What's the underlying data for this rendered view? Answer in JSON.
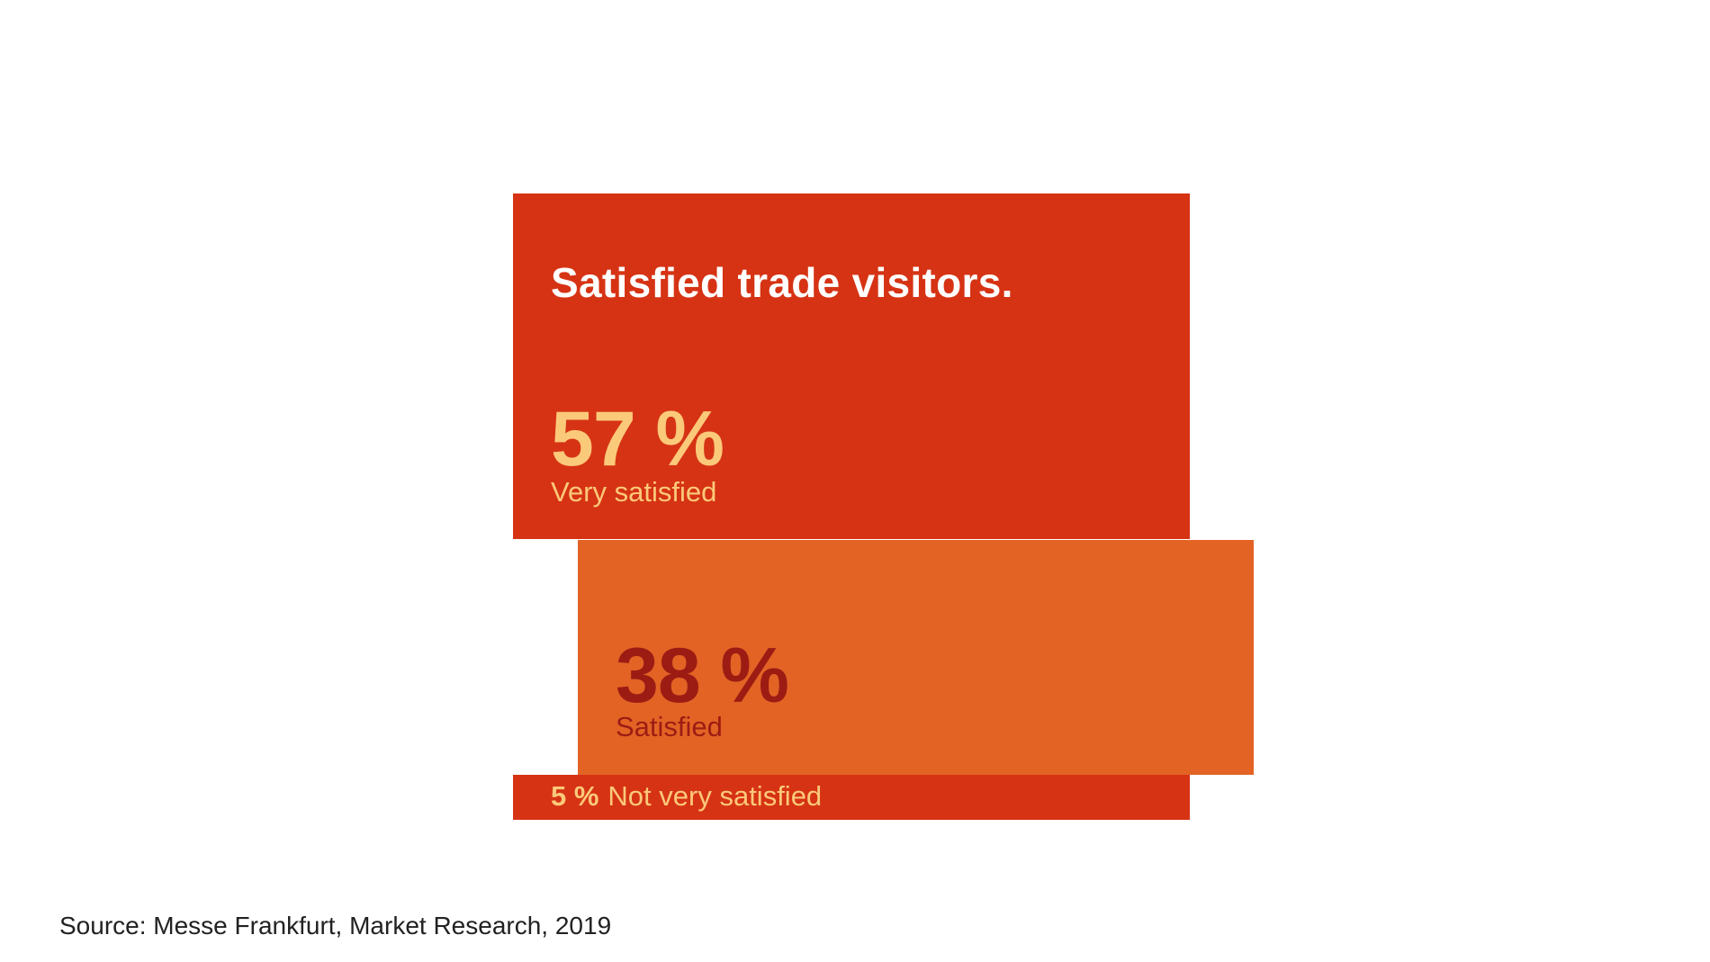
{
  "chart_data": {
    "type": "bar",
    "title": "Satisfied trade visitors.",
    "categories": [
      "Very satisfied",
      "Satisfied",
      "Not very satisfied"
    ],
    "values": [
      57,
      38,
      5
    ],
    "value_labels": [
      "57 %",
      "38 %",
      "5 %"
    ],
    "unit": "%",
    "colors": [
      "#d63314",
      "#e36325",
      "#d63314"
    ],
    "value_colors": [
      "#fbc97a",
      "#9c1c14",
      "#fbc97a"
    ],
    "grid": false,
    "legend": "none"
  },
  "source": "Source: Messe Frankfurt, Market Research, 2019"
}
